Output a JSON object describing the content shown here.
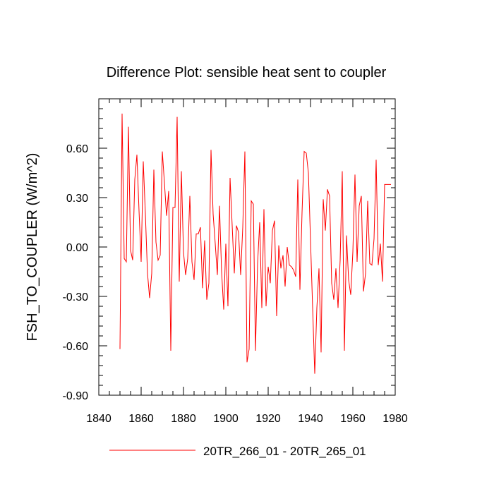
{
  "chart_data": {
    "type": "line",
    "title": "Difference Plot: sensible heat sent to coupler",
    "ylabel": "FSH_TO_COUPLER  (W/m^2)",
    "xlabel": "",
    "xlim": [
      1840,
      1980
    ],
    "ylim": [
      -0.9,
      0.9
    ],
    "xticks": [
      1840,
      1860,
      1880,
      1900,
      1920,
      1940,
      1960,
      1980
    ],
    "yticks": [
      -0.9,
      -0.6,
      -0.3,
      0.0,
      0.3,
      0.6
    ],
    "xtick_labels": [
      "1840",
      "1860",
      "1880",
      "1900",
      "1920",
      "1940",
      "1960",
      "1980"
    ],
    "ytick_labels": [
      "-0.90",
      "-0.60",
      "-0.30",
      "0.00",
      "0.30",
      "0.60"
    ],
    "grid": false,
    "legend_position": "bottom",
    "series": [
      {
        "name": "20TR_266_01 - 20TR_265_01",
        "color": "#ff0000",
        "x": [
          1850,
          1851,
          1852,
          1853,
          1854,
          1855,
          1856,
          1857,
          1858,
          1859,
          1860,
          1861,
          1862,
          1863,
          1864,
          1865,
          1866,
          1867,
          1868,
          1869,
          1870,
          1871,
          1872,
          1873,
          1874,
          1875,
          1876,
          1877,
          1878,
          1879,
          1880,
          1881,
          1882,
          1883,
          1884,
          1885,
          1886,
          1887,
          1888,
          1889,
          1890,
          1891,
          1892,
          1893,
          1894,
          1895,
          1896,
          1897,
          1898,
          1899,
          1900,
          1901,
          1902,
          1903,
          1904,
          1905,
          1906,
          1907,
          1908,
          1909,
          1910,
          1911,
          1912,
          1913,
          1914,
          1915,
          1916,
          1917,
          1918,
          1919,
          1920,
          1921,
          1922,
          1923,
          1924,
          1925,
          1926,
          1927,
          1928,
          1929,
          1930,
          1931,
          1932,
          1933,
          1934,
          1935,
          1936,
          1937,
          1938,
          1939,
          1940,
          1941,
          1942,
          1943,
          1944,
          1945,
          1946,
          1947,
          1948,
          1949,
          1950,
          1951,
          1952,
          1953,
          1954,
          1955,
          1956,
          1957,
          1958,
          1959,
          1960,
          1961,
          1962,
          1963,
          1964,
          1965,
          1966,
          1967,
          1968,
          1969,
          1970,
          1971,
          1972,
          1973,
          1974,
          1975,
          1976,
          1977,
          1978
        ],
        "values": [
          -0.62,
          0.81,
          -0.07,
          -0.09,
          0.73,
          -0.02,
          -0.08,
          0.41,
          0.56,
          0.22,
          -0.09,
          0.52,
          0.2,
          -0.16,
          -0.31,
          -0.16,
          0.47,
          0.03,
          -0.08,
          -0.05,
          0.58,
          0.39,
          0.19,
          0.34,
          -0.63,
          0.24,
          0.24,
          0.79,
          -0.21,
          0.46,
          -0.03,
          -0.17,
          -0.07,
          0.31,
          -0.09,
          -0.2,
          0.08,
          0.08,
          0.12,
          -0.25,
          0.04,
          -0.32,
          -0.22,
          0.59,
          0.2,
          0.02,
          -0.17,
          0.25,
          -0.15,
          -0.38,
          0.02,
          -0.36,
          0.42,
          0.13,
          -0.16,
          0.13,
          0.09,
          -0.17,
          0.12,
          0.58,
          -0.7,
          -0.62,
          0.28,
          0.26,
          -0.63,
          -0.1,
          0.15,
          -0.37,
          0.23,
          -0.36,
          -0.12,
          -0.22,
          0.1,
          0.16,
          -0.42,
          0.01,
          -0.13,
          -0.05,
          -0.24,
          0.0,
          -0.11,
          -0.12,
          -0.14,
          -0.18,
          0.41,
          -0.26,
          0.21,
          0.58,
          0.57,
          0.45,
          0.04,
          -0.37,
          -0.77,
          -0.37,
          -0.13,
          -0.64,
          0.29,
          0.1,
          0.35,
          0.31,
          -0.22,
          -0.32,
          -0.13,
          -0.37,
          -0.08,
          0.46,
          -0.63,
          0.07,
          -0.2,
          -0.29,
          -0.03,
          0.44,
          -0.09,
          0.25,
          0.31,
          -0.27,
          -0.16,
          0.28,
          -0.1,
          -0.11,
          0.05,
          0.53,
          -0.11,
          0.02,
          -0.21,
          0.38,
          0.38,
          0.38,
          0.38
        ]
      }
    ]
  }
}
